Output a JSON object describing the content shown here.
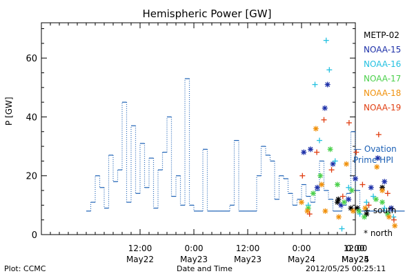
{
  "chart_data": {
    "type": "scatter",
    "title": "Hemispheric Power [GW]",
    "ylabel": "P [GW]",
    "xlabel": "Date and Time",
    "ylim": [
      0,
      72
    ],
    "y_ticks": [
      0,
      20,
      40,
      60
    ],
    "x_range_hours": [
      -10,
      60
    ],
    "x_ticks": [
      {
        "h": 12,
        "time": "12:00",
        "date": "May22"
      },
      {
        "h": 24,
        "time": "0:00",
        "date": "May23"
      },
      {
        "h": 36,
        "time": "12:00",
        "date": "May23"
      },
      {
        "h": 48,
        "time": "0:00",
        "date": "May24"
      },
      {
        "h": 60,
        "time": "12:00",
        "date": "May24"
      },
      {
        "h": 72,
        "time": "0:00",
        "date": "May25"
      }
    ],
    "x_axis_start": "2012-05-21 10:00",
    "ovation_color": "#1a5fb4",
    "ovation_hpi_step": {
      "x_hours": [
        0,
        1,
        2,
        3,
        4,
        5,
        6,
        7,
        8,
        9,
        10,
        11,
        12,
        13,
        14,
        15,
        16,
        17,
        18,
        19,
        20,
        21,
        22,
        23,
        24,
        25,
        26,
        27,
        28,
        29,
        30,
        31,
        32,
        33,
        34,
        35,
        36,
        37,
        38,
        39,
        40,
        41,
        42,
        43,
        44,
        45,
        46,
        47,
        48,
        49,
        50,
        51,
        52,
        53,
        54,
        55,
        56,
        57,
        58,
        59,
        60,
        61,
        62,
        63,
        64,
        65,
        66,
        67,
        68,
        69,
        70
      ],
      "values": [
        8,
        11,
        20,
        16,
        9,
        27,
        18,
        22,
        45,
        11,
        37,
        14,
        31,
        16,
        26,
        9,
        22,
        28,
        40,
        13,
        20,
        10,
        53,
        10,
        8,
        8,
        29,
        8,
        8,
        8,
        8,
        8,
        10,
        32,
        8,
        8,
        8,
        8,
        20,
        30,
        27,
        25,
        12,
        20,
        19,
        14,
        10,
        12,
        17,
        13,
        11,
        15,
        25,
        15,
        12,
        8,
        8,
        10,
        14,
        35,
        15,
        8,
        8,
        8,
        8,
        8,
        8,
        8,
        8,
        8,
        8
      ]
    },
    "series": [
      {
        "name": "METP-02",
        "color": "#000000",
        "marker": "*",
        "points": [
          [
            56.2,
            12
          ],
          [
            59.0,
            9
          ],
          [
            62.5,
            7
          ],
          [
            66.0,
            16
          ],
          [
            56.0,
            11
          ],
          [
            60.4,
            9
          ]
        ]
      },
      {
        "name": "NOAA-15",
        "color": "#1c2fa8",
        "marker": "*",
        "points": [
          [
            48.5,
            28
          ],
          [
            50.0,
            29
          ],
          [
            51.5,
            16
          ],
          [
            53.2,
            43
          ],
          [
            53.8,
            51
          ],
          [
            55.0,
            24
          ],
          [
            56.8,
            10
          ],
          [
            58.5,
            12
          ],
          [
            60.0,
            19
          ],
          [
            63.5,
            16
          ],
          [
            65.0,
            26
          ],
          [
            66.5,
            18
          ],
          [
            68.0,
            9
          ]
        ]
      },
      {
        "name": "NOAA-16",
        "color": "#22c0e0",
        "marker": "+",
        "points": [
          [
            51.0,
            51
          ],
          [
            52.0,
            32
          ],
          [
            53.5,
            66
          ],
          [
            54.2,
            56
          ],
          [
            55.5,
            25
          ],
          [
            57.0,
            2
          ],
          [
            58.5,
            16
          ],
          [
            49.5,
            10
          ],
          [
            61.0,
            7
          ],
          [
            62.5,
            11
          ],
          [
            64.0,
            13
          ],
          [
            66.5,
            9
          ],
          [
            68.5,
            6
          ]
        ]
      },
      {
        "name": "NOAA-17",
        "color": "#4ad04a",
        "marker": "*",
        "points": [
          [
            49.5,
            9
          ],
          [
            50.6,
            14
          ],
          [
            52.2,
            20
          ],
          [
            54.4,
            29
          ],
          [
            56.0,
            17
          ],
          [
            57.5,
            11
          ],
          [
            59.2,
            15
          ],
          [
            60.8,
            8
          ],
          [
            62.0,
            6
          ],
          [
            64.6,
            12
          ],
          [
            66.0,
            11
          ],
          [
            67.2,
            7
          ]
        ]
      },
      {
        "name": "NOAA-18",
        "color": "#f0900a",
        "marker": "*",
        "points": [
          [
            48.0,
            11
          ],
          [
            49.3,
            8
          ],
          [
            51.2,
            36
          ],
          [
            52.5,
            17
          ],
          [
            53.3,
            8
          ],
          [
            56.3,
            6
          ],
          [
            58.0,
            24
          ],
          [
            59.5,
            8
          ],
          [
            62.2,
            9
          ],
          [
            64.8,
            23
          ],
          [
            66.0,
            15
          ],
          [
            67.5,
            6
          ],
          [
            68.8,
            3
          ]
        ]
      },
      {
        "name": "NOAA-19",
        "color": "#e03d10",
        "marker": "+",
        "points": [
          [
            48.2,
            20
          ],
          [
            49.8,
            7
          ],
          [
            51.4,
            28
          ],
          [
            53.0,
            39
          ],
          [
            54.7,
            22
          ],
          [
            57.2,
            13
          ],
          [
            58.6,
            38
          ],
          [
            60.2,
            28
          ],
          [
            61.6,
            17
          ],
          [
            63.0,
            10
          ],
          [
            65.2,
            34
          ],
          [
            67.2,
            14
          ],
          [
            68.6,
            5
          ]
        ]
      }
    ],
    "right_labels": {
      "ovation_line1": "— Ovation",
      "ovation_line2": "Prime HPI",
      "south": "+ south",
      "north": "* north"
    },
    "footer": {
      "left": "Plot: CCMC",
      "center": "Date and Time",
      "right": "2012/05/25 00:25:11"
    }
  }
}
